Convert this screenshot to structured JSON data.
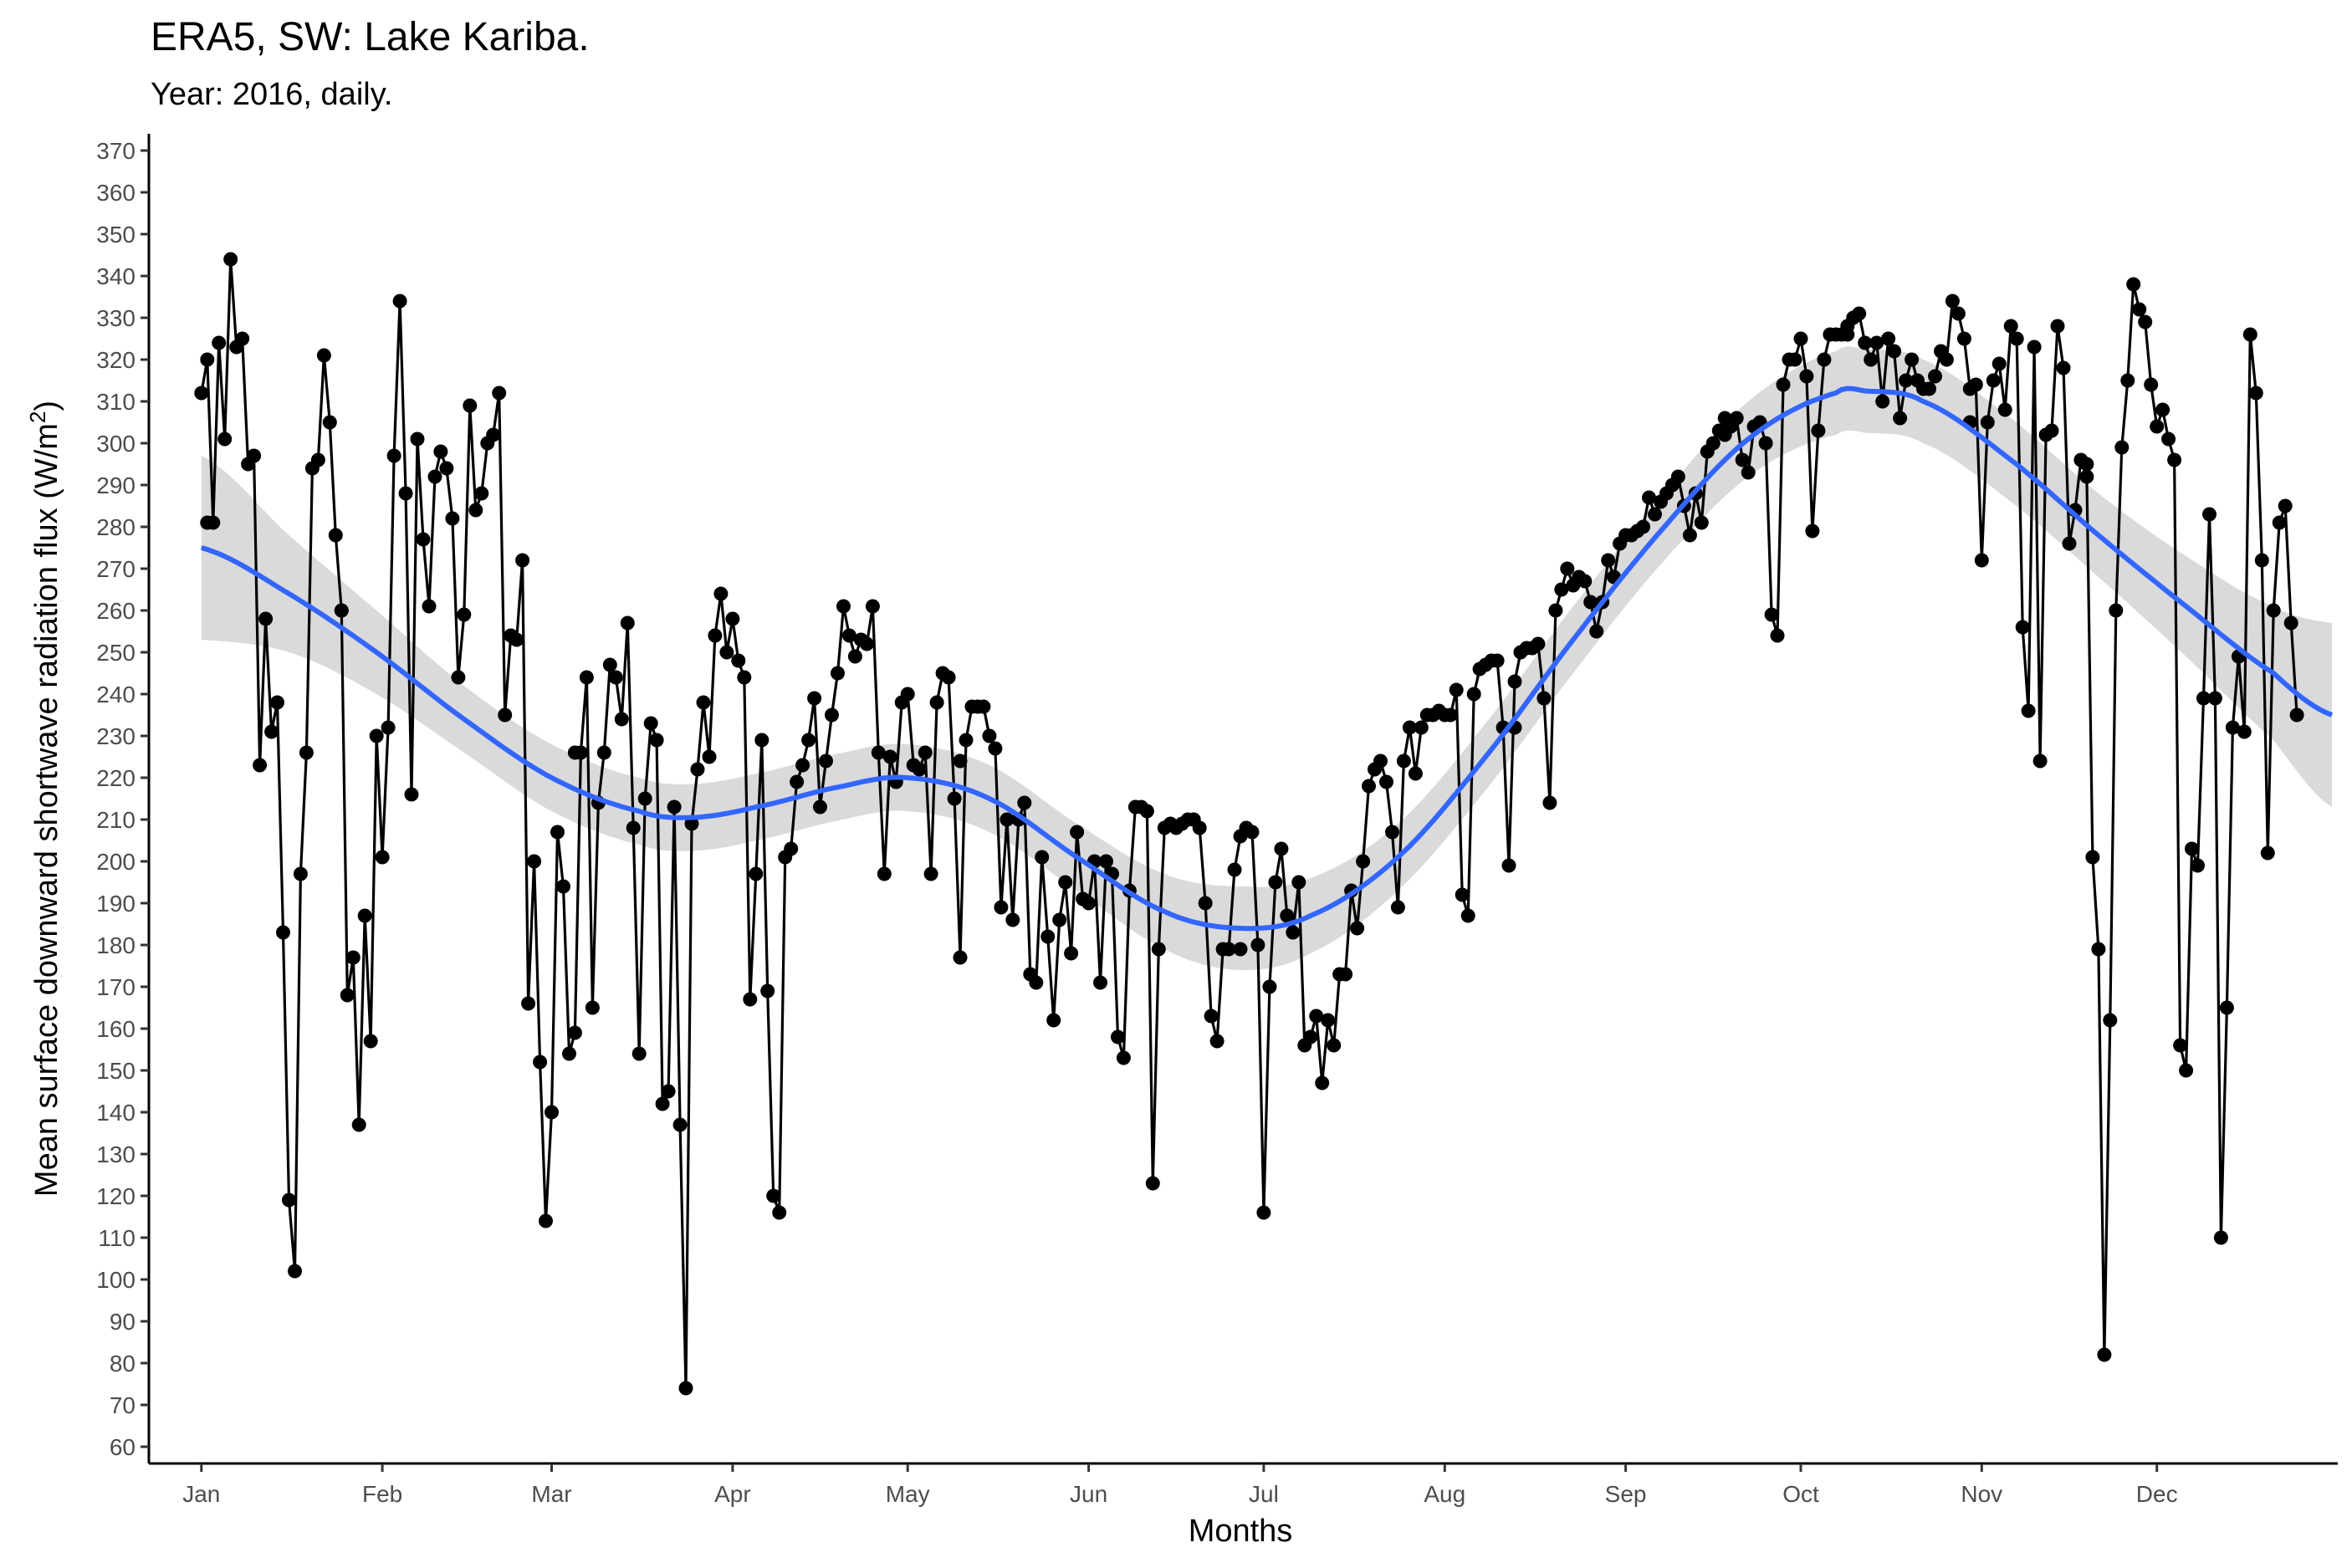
{
  "chart_data": {
    "type": "line",
    "title": "ERA5, SW: Lake Kariba.",
    "subtitle": "Year: 2016, daily.",
    "xlabel": "Months",
    "ylabel": "Mean surface downward shortwave radiation flux (W/m",
    "ylabel_superscript": "2",
    "ylabel_close": ")",
    "x_unit": "day_of_year",
    "xlim": [
      -9,
      366
    ],
    "ylim": [
      56,
      374
    ],
    "y_ticks": [
      60,
      70,
      80,
      90,
      100,
      110,
      120,
      130,
      140,
      150,
      160,
      170,
      180,
      190,
      200,
      210,
      220,
      230,
      240,
      250,
      260,
      270,
      280,
      290,
      300,
      310,
      320,
      330,
      340,
      350,
      360,
      370
    ],
    "x_ticks": [
      {
        "label": "Jan",
        "day": 0
      },
      {
        "label": "Feb",
        "day": 31
      },
      {
        "label": "Mar",
        "day": 60
      },
      {
        "label": "Apr",
        "day": 91
      },
      {
        "label": "May",
        "day": 121
      },
      {
        "label": "Jun",
        "day": 152
      },
      {
        "label": "Jul",
        "day": 182
      },
      {
        "label": "Aug",
        "day": 213
      },
      {
        "label": "Sep",
        "day": 244
      },
      {
        "label": "Oct",
        "day": 274
      },
      {
        "label": "Nov",
        "day": 305
      },
      {
        "label": "Dec",
        "day": 335
      }
    ],
    "grid": false,
    "legend": "none",
    "colors": {
      "line": "#000000",
      "points": "#000000",
      "smooth": "#3366ff",
      "ribbon": "#d3d3d3",
      "axis": "#000000"
    },
    "series": [
      {
        "type": "line+points",
        "x_start": 0,
        "values": [
          312,
          320,
          281,
          324,
          301,
          344,
          323,
          325,
          295,
          297,
          223,
          258,
          231,
          238,
          183,
          119,
          102,
          197,
          226,
          294,
          296,
          321,
          305,
          278,
          260,
          168,
          177,
          137,
          187,
          157,
          230,
          201,
          232,
          297,
          334,
          288,
          216,
          301,
          277,
          261,
          292,
          298,
          294,
          282,
          244,
          259,
          309,
          284,
          288,
          300,
          302,
          312,
          235,
          254,
          253,
          272,
          166,
          200,
          152,
          114,
          140,
          207,
          194,
          154,
          159,
          226,
          244,
          165,
          214,
          226,
          247,
          244,
          234,
          257,
          208,
          154,
          215,
          233,
          229,
          142,
          145,
          213,
          137,
          74,
          209,
          222,
          238,
          225,
          254,
          264,
          250,
          258,
          248,
          244,
          167,
          197,
          229,
          169,
          120,
          116,
          201,
          203,
          219,
          223,
          229,
          239,
          213,
          224,
          235,
          245,
          261,
          254,
          249,
          253,
          252,
          261,
          226,
          197,
          225,
          219,
          238,
          240,
          223,
          222,
          226,
          197,
          238,
          245,
          244,
          215,
          177,
          229,
          237,
          237,
          237,
          230,
          227,
          189,
          210,
          186,
          210,
          214,
          173,
          171,
          201,
          182,
          162,
          186,
          195,
          178,
          207,
          191,
          190,
          200,
          171,
          200,
          197,
          158,
          153,
          193,
          213,
          213,
          212,
          123,
          179,
          208,
          209,
          208,
          209,
          210,
          210,
          208,
          190,
          163,
          157,
          179,
          179,
          198,
          206,
          208,
          207,
          180,
          116,
          170,
          195,
          203,
          187,
          183,
          195,
          156,
          158,
          163,
          147,
          162,
          156,
          173,
          173,
          193,
          184,
          200,
          218,
          222,
          224,
          219,
          207,
          189,
          224,
          232,
          221,
          232,
          235,
          235,
          236,
          235,
          235,
          241,
          192,
          187,
          240,
          246,
          247,
          248,
          248,
          232,
          199,
          243,
          250,
          251,
          251,
          252,
          239,
          214,
          260,
          265,
          270,
          266,
          268,
          267,
          262,
          255,
          262,
          272,
          268,
          276,
          278,
          278,
          279,
          280,
          287,
          283,
          286,
          288,
          290,
          292,
          285,
          278,
          288,
          281,
          298,
          300,
          303,
          302,
          304,
          306,
          296,
          293,
          304,
          305,
          300,
          259,
          254,
          314,
          320,
          320,
          325,
          316,
          279,
          303,
          320,
          326,
          326,
          326,
          328,
          330,
          331,
          324,
          320,
          324,
          310,
          325,
          322,
          306,
          315,
          320,
          315,
          313,
          313,
          316,
          322,
          320,
          334,
          331,
          325,
          313,
          314,
          272,
          305,
          315,
          319,
          308,
          328,
          325,
          256,
          236,
          323,
          224,
          302,
          303,
          328,
          318,
          276,
          284,
          296,
          292,
          201,
          179,
          82,
          162,
          260,
          299,
          315,
          338,
          332,
          329,
          314,
          304,
          308,
          301,
          296,
          156,
          150,
          203,
          199,
          239,
          283,
          239,
          110,
          165,
          232,
          249,
          231,
          326,
          312,
          272,
          202,
          260,
          281,
          285,
          257,
          235
        ],
        "points_only": [
          {
            "day": 1,
            "value": 281
          },
          {
            "day": 24,
            "value": 260
          },
          {
            "day": 64,
            "value": 226
          },
          {
            "day": 130,
            "value": 224
          },
          {
            "day": 178,
            "value": 179
          },
          {
            "day": 225,
            "value": 232
          },
          {
            "day": 261,
            "value": 306
          },
          {
            "day": 282,
            "value": 326
          },
          {
            "day": 303,
            "value": 305
          },
          {
            "day": 323,
            "value": 295
          }
        ]
      },
      {
        "type": "smooth",
        "name": "",
        "x": [
          0,
          15,
          30,
          45,
          60,
          75,
          84,
          95,
          110,
          121,
          135,
          150,
          165,
          178,
          190,
          205,
          220,
          235,
          250,
          265,
          280,
          285,
          295,
          310,
          325,
          340,
          355,
          365
        ],
        "values": [
          275,
          264,
          250,
          234,
          220,
          212,
          210.5,
          213,
          218,
          220,
          215,
          201,
          188,
          184,
          187,
          201,
          225,
          253,
          279,
          301,
          312,
          312.5,
          310,
          296,
          278,
          261,
          245,
          235
        ],
        "ribbon_half_width": [
          22,
          14,
          10,
          8,
          8,
          8,
          8,
          8,
          8,
          8,
          8,
          8,
          9,
          10,
          9,
          8,
          8,
          8,
          8,
          9,
          10,
          10,
          10,
          10,
          10,
          12,
          16,
          22
        ]
      }
    ]
  }
}
